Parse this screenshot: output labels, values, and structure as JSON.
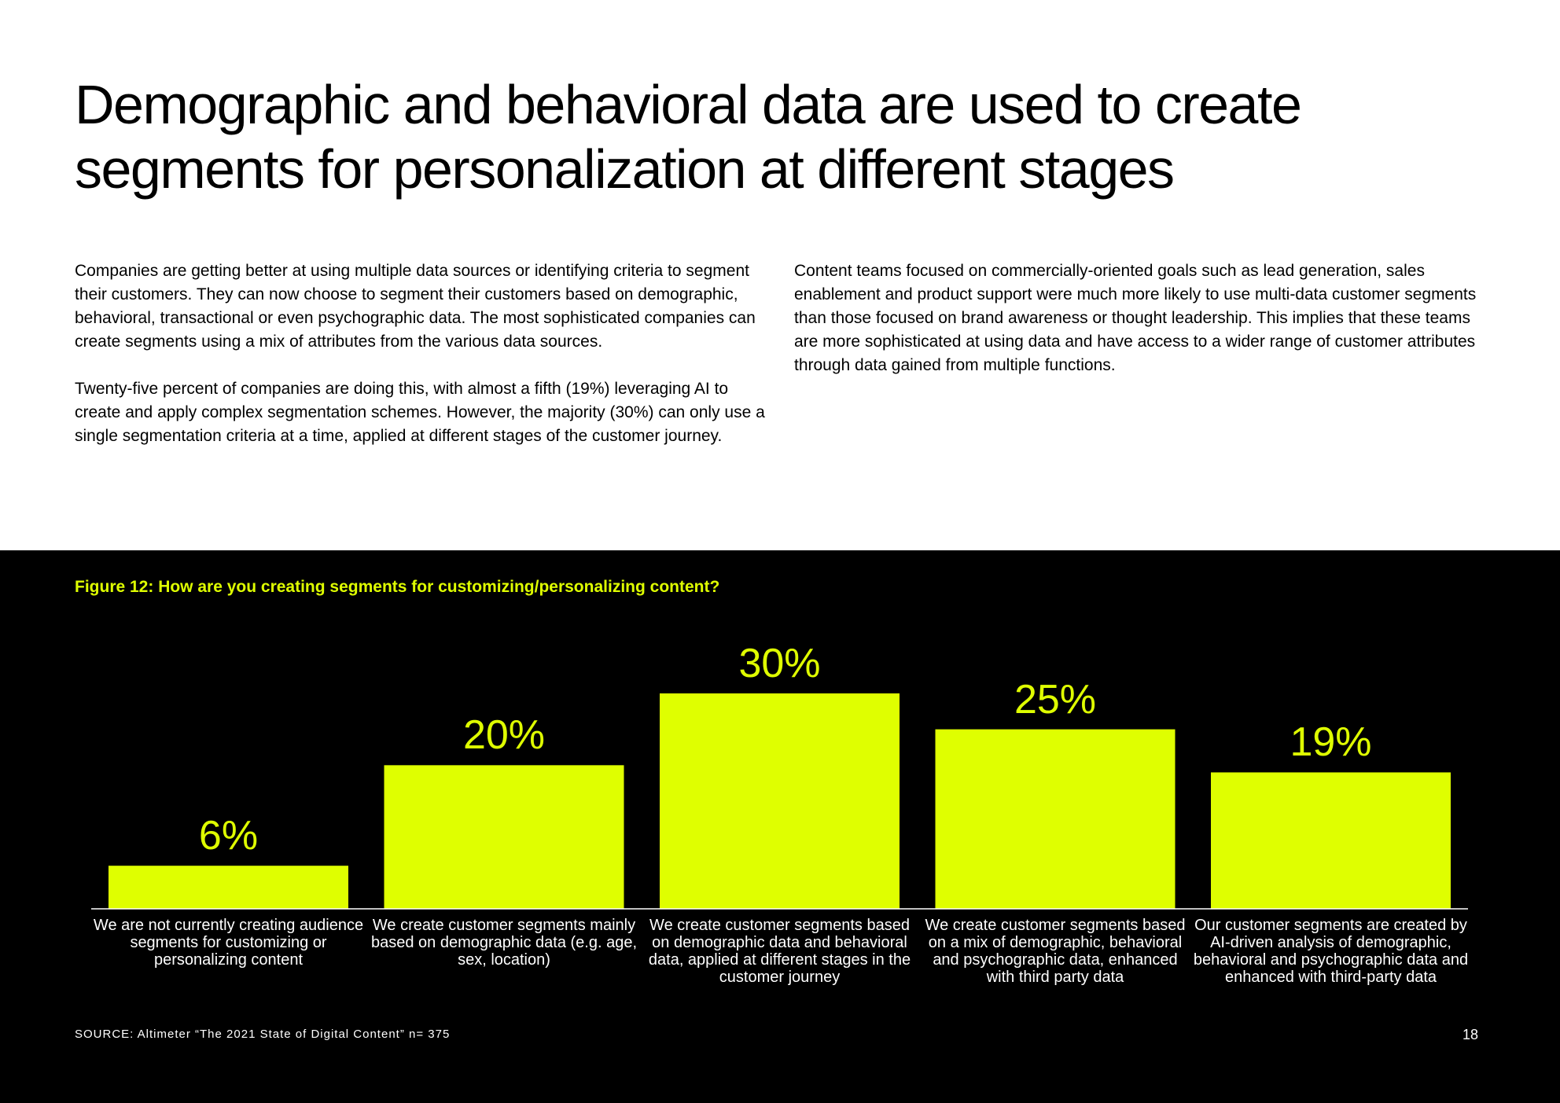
{
  "title": "Demographic and behavioral data are used to create segments for personalization at different stages",
  "body": {
    "left": [
      "Companies are getting better at using multiple data sources or identifying criteria to segment their customers. They can now choose to segment their customers based on demographic, behavioral, transactional or even psychographic data. The most sophisticated companies can create segments using a mix of attributes from the various data sources.",
      "Twenty-five percent of companies are doing this, with almost a fifth (19%) leveraging AI to create and apply complex segmentation schemes. However, the majority (30%) can only use a single segmentation criteria at a time, applied at different stages of the customer journey."
    ],
    "right": [
      "Content teams focused on commercially-oriented goals such as lead generation, sales enablement and product support were much more likely to use multi-data customer segments than those focused on brand awareness or thought leadership. This implies that these teams are more sophisticated at using data and have access to a wider range of customer attributes through data gained from multiple functions."
    ]
  },
  "chart_data": {
    "type": "bar",
    "title": "Figure 12: How are you creating segments for customizing/personalizing content?",
    "categories": [
      "We are not currently creating audience segments for customizing or personalizing content",
      "We create customer segments mainly based on demographic data (e.g. age, sex, location)",
      "We create customer segments based on demographic data and behavioral data, applied at different stages in the customer journey",
      "We create customer segments based on a mix of demographic, behavioral and psychographic data, enhanced with third party data",
      "Our customer segments are created by AI-driven analysis of demographic, behavioral and psychographic data and enhanced with third-party data"
    ],
    "values": [
      6,
      20,
      30,
      25,
      19
    ],
    "value_labels": [
      "6%",
      "20%",
      "30%",
      "25%",
      "19%"
    ],
    "color": "#dfff00"
  },
  "source": "SOURCE: Altimeter “The 2021 State of Digital Content” n= 375",
  "page_number": "18"
}
